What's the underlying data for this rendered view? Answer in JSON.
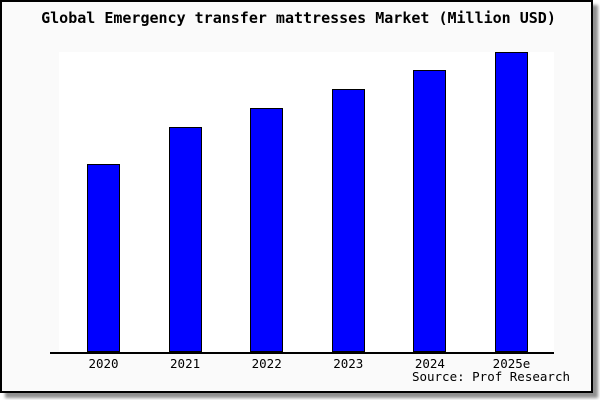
{
  "window": {
    "title": "Global Emergency transfer mattresses Market (Million USD)",
    "source": "Source: Prof Research"
  },
  "colors": {
    "bar_fill": "#0000ff",
    "bar_border": "#000000",
    "page_background": "#fafafa",
    "plot_background": "#ffffff",
    "axis": "#000000",
    "frame_border": "#000000",
    "frame_shadow": "#8f8f8f",
    "text": "#000000"
  },
  "chart_data": {
    "type": "bar",
    "title": "Global Emergency transfer mattresses Market (Million USD)",
    "categories": [
      "2020",
      "2021",
      "2022",
      "2023",
      "2024",
      "2025e"
    ],
    "values": [
      62.7,
      75.0,
      81.4,
      87.7,
      93.9,
      100
    ],
    "units": "relative height (no y-axis scale shown; tallest bar 2025e = 100)",
    "xlabel": "",
    "ylabel": "",
    "ylim": [
      0,
      100
    ],
    "grid": false,
    "legend": false,
    "annotations": [
      "Source: Prof Research"
    ]
  }
}
